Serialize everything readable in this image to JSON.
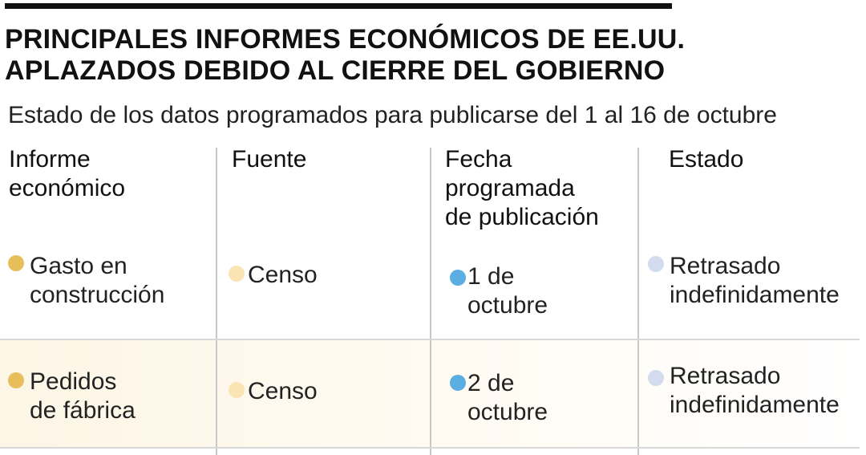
{
  "title": {
    "line1": "PRINCIPALES INFORMES ECONÓMICOS DE EE.UU.",
    "line2": "APLAZADOS DEBIDO AL CIERRE DEL GOBIERNO"
  },
  "subtitle": "Estado de los datos programados para publicarse del 1 al 16 de octubre",
  "headers": {
    "informe": [
      "Informe",
      "económico"
    ],
    "fuente": [
      "Fuente"
    ],
    "fecha": [
      "Fecha",
      "programada",
      "de publicación"
    ],
    "estado": [
      "Estado"
    ]
  },
  "colors": {
    "informe_dot": "#e8be5a",
    "fuente_dot": "#fbe4b4",
    "fecha_dot": "#5aaee2",
    "estado_dot": "#d3dcef",
    "highlight_band": "#fdf7ea"
  },
  "rows": [
    {
      "informe": [
        "Gasto en",
        "construcción"
      ],
      "fuente": [
        "Censo"
      ],
      "fecha": [
        "1 de",
        "octubre"
      ],
      "estado": [
        "Retrasado",
        "indefinidamente"
      ]
    },
    {
      "informe": [
        "Pedidos",
        "de fábrica"
      ],
      "fuente": [
        "Censo"
      ],
      "fecha": [
        "2 de",
        "octubre"
      ],
      "estado": [
        "Retrasado",
        "indefinidamente"
      ]
    }
  ]
}
